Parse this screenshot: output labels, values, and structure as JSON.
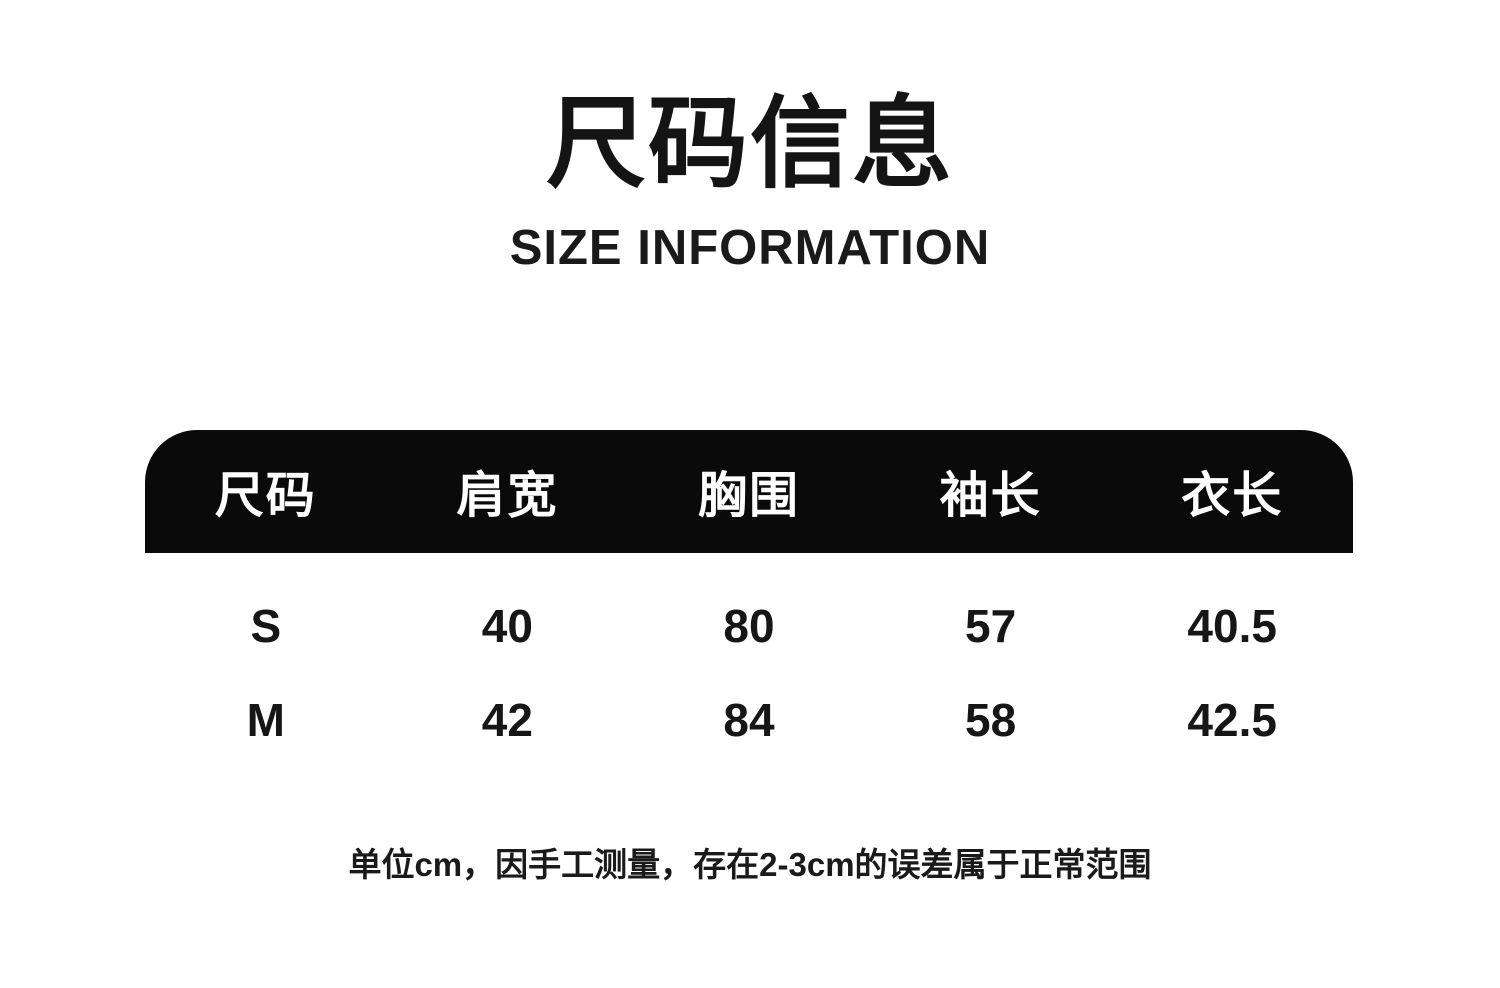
{
  "page": {
    "background": "#ffffff",
    "accent_black": "#0a0a0a"
  },
  "title": {
    "zh": "尺码信息",
    "en": "SIZE INFORMATION"
  },
  "size_table": {
    "header_bg": "#0a0a0a",
    "header_text_color": "#ffffff",
    "columns": [
      {
        "key": "size",
        "label": "尺码"
      },
      {
        "key": "shoulder",
        "label": "肩宽"
      },
      {
        "key": "bust",
        "label": "胸围"
      },
      {
        "key": "sleeve",
        "label": "袖长"
      },
      {
        "key": "length",
        "label": "衣长"
      }
    ],
    "rows": [
      {
        "size": "S",
        "shoulder": "40",
        "bust": "80",
        "sleeve": "57",
        "length": "40.5"
      },
      {
        "size": "M",
        "shoulder": "42",
        "bust": "84",
        "sleeve": "58",
        "length": "42.5"
      }
    ]
  },
  "note": {
    "text": "单位cm，因手工测量，存在2-3cm的误差属于正常范围"
  },
  "chart_data": {
    "type": "table",
    "title": "尺码信息 / SIZE INFORMATION",
    "columns": [
      "尺码",
      "肩宽",
      "胸围",
      "袖长",
      "衣长"
    ],
    "rows": [
      [
        "S",
        40,
        80,
        57,
        40.5
      ],
      [
        "M",
        42,
        84,
        58,
        42.5
      ]
    ],
    "unit": "cm",
    "note": "单位cm，因手工测量，存在2-3cm的误差属于正常范围"
  }
}
